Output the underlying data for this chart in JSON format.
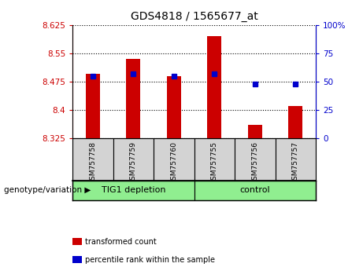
{
  "title": "GDS4818 / 1565677_at",
  "samples": [
    "GSM757758",
    "GSM757759",
    "GSM757760",
    "GSM757755",
    "GSM757756",
    "GSM757757"
  ],
  "transformed_count": [
    8.495,
    8.535,
    8.49,
    8.595,
    8.36,
    8.41
  ],
  "percentile_rank": [
    55,
    57,
    55,
    57,
    48,
    48
  ],
  "bar_bottom": 8.325,
  "ylim_left": [
    8.325,
    8.625
  ],
  "ylim_right": [
    0,
    100
  ],
  "yticks_left": [
    8.325,
    8.4,
    8.475,
    8.55,
    8.625
  ],
  "ytick_labels_left": [
    "8.325",
    "8.4",
    "8.475",
    "8.55",
    "8.625"
  ],
  "yticks_right": [
    0,
    25,
    50,
    75,
    100
  ],
  "ytick_labels_right": [
    "0",
    "25",
    "50",
    "75",
    "100%"
  ],
  "bar_color": "#cc0000",
  "dot_color": "#0000cc",
  "left_tick_color": "#cc0000",
  "right_tick_color": "#0000cc",
  "group_regions": [
    {
      "label": "TIG1 depletion",
      "start": 0,
      "end": 3,
      "color": "#90ee90"
    },
    {
      "label": "control",
      "start": 3,
      "end": 6,
      "color": "#90ee90"
    }
  ],
  "legend_items": [
    {
      "label": "transformed count",
      "color": "#cc0000"
    },
    {
      "label": "percentile rank within the sample",
      "color": "#0000cc"
    }
  ],
  "genotype_label": "genotype/variation",
  "bar_width": 0.35
}
